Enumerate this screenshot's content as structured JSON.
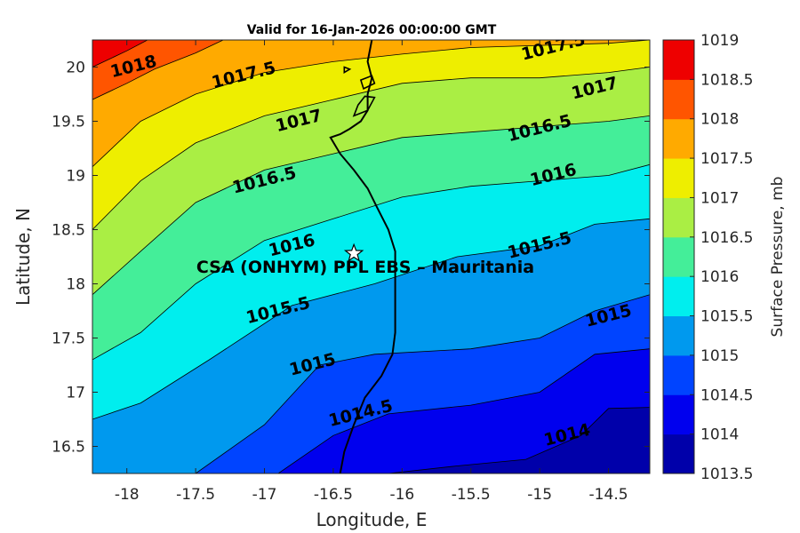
{
  "chart_data": {
    "type": "contour",
    "title": "Valid for 16-Jan-2026 00:00:00 GMT",
    "xlabel": "Longitude, E",
    "ylabel": "Latitude, N",
    "xlim": [
      -18.25,
      -14.2
    ],
    "ylim": [
      16.25,
      20.25
    ],
    "xticks": [
      "-18",
      "-17.5",
      "-17",
      "-16.5",
      "-16",
      "-15.5",
      "-15",
      "-14.5"
    ],
    "yticks": [
      "16.5",
      "17",
      "17.5",
      "18",
      "18.5",
      "19",
      "19.5",
      "20"
    ],
    "colorbar": {
      "label": "Surface Pressure, mb",
      "levels": [
        "1013.5",
        "1014",
        "1014.5",
        "1015",
        "1015.5",
        "1016",
        "1016.5",
        "1017",
        "1017.5",
        "1018",
        "1018.5",
        "1019"
      ],
      "colors": [
        "#0000aa",
        "#0000ee",
        "#0044ff",
        "#0099ee",
        "#00eeee",
        "#44ee99",
        "#aaee44",
        "#eeee00",
        "#ffaa00",
        "#ff5500",
        "#ee0000",
        "#aa0000"
      ]
    },
    "isobars": [
      {
        "level": "1014",
        "points": [
          [
            -16.1,
            16.25
          ],
          [
            -15.6,
            16.32
          ],
          [
            -15.1,
            16.38
          ],
          [
            -14.7,
            16.6
          ],
          [
            -14.5,
            16.85
          ],
          [
            -14.2,
            16.86
          ]
        ]
      },
      {
        "level": "1014.5",
        "points": [
          [
            -16.9,
            16.25
          ],
          [
            -16.5,
            16.6
          ],
          [
            -16.1,
            16.8
          ],
          [
            -15.5,
            16.88
          ],
          [
            -15.0,
            17.0
          ],
          [
            -14.6,
            17.35
          ],
          [
            -14.2,
            17.4
          ]
        ]
      },
      {
        "level": "1015",
        "points": [
          [
            -17.5,
            16.25
          ],
          [
            -17.0,
            16.7
          ],
          [
            -16.6,
            17.25
          ],
          [
            -16.2,
            17.35
          ],
          [
            -15.5,
            17.4
          ],
          [
            -15.0,
            17.5
          ],
          [
            -14.6,
            17.75
          ],
          [
            -14.2,
            17.9
          ]
        ]
      },
      {
        "level": "1015.5",
        "points": [
          [
            -18.25,
            16.75
          ],
          [
            -17.9,
            16.9
          ],
          [
            -17.4,
            17.3
          ],
          [
            -16.8,
            17.8
          ],
          [
            -16.2,
            18.0
          ],
          [
            -15.6,
            18.25
          ],
          [
            -15.0,
            18.35
          ],
          [
            -14.6,
            18.55
          ],
          [
            -14.2,
            18.6
          ]
        ]
      },
      {
        "level": "1016",
        "points": [
          [
            -18.25,
            17.3
          ],
          [
            -17.9,
            17.55
          ],
          [
            -17.5,
            18.0
          ],
          [
            -17.0,
            18.4
          ],
          [
            -16.5,
            18.6
          ],
          [
            -16.0,
            18.8
          ],
          [
            -15.5,
            18.9
          ],
          [
            -15.0,
            18.95
          ],
          [
            -14.5,
            19.0
          ],
          [
            -14.2,
            19.1
          ]
        ]
      },
      {
        "level": "1016.5",
        "points": [
          [
            -18.25,
            17.9
          ],
          [
            -17.9,
            18.3
          ],
          [
            -17.5,
            18.75
          ],
          [
            -17.0,
            19.05
          ],
          [
            -16.5,
            19.2
          ],
          [
            -16.0,
            19.35
          ],
          [
            -15.5,
            19.4
          ],
          [
            -15.0,
            19.45
          ],
          [
            -14.5,
            19.5
          ],
          [
            -14.2,
            19.55
          ]
        ]
      },
      {
        "level": "1017",
        "points": [
          [
            -18.25,
            18.5
          ],
          [
            -17.9,
            18.95
          ],
          [
            -17.5,
            19.3
          ],
          [
            -17.0,
            19.55
          ],
          [
            -16.5,
            19.7
          ],
          [
            -16.0,
            19.85
          ],
          [
            -15.5,
            19.9
          ],
          [
            -15.0,
            19.9
          ],
          [
            -14.5,
            19.95
          ],
          [
            -14.2,
            20.0
          ]
        ]
      },
      {
        "level": "1017.5",
        "points": [
          [
            -18.25,
            19.08
          ],
          [
            -17.9,
            19.5
          ],
          [
            -17.5,
            19.75
          ],
          [
            -17.0,
            19.95
          ],
          [
            -16.5,
            20.05
          ],
          [
            -16.0,
            20.12
          ],
          [
            -15.5,
            20.18
          ],
          [
            -15.0,
            20.2
          ],
          [
            -14.5,
            20.22
          ],
          [
            -14.2,
            20.25
          ]
        ]
      },
      {
        "level": "1018",
        "points": [
          [
            -18.25,
            19.7
          ],
          [
            -18.0,
            19.85
          ],
          [
            -17.8,
            19.98
          ],
          [
            -17.5,
            20.13
          ],
          [
            -17.3,
            20.25
          ]
        ]
      },
      {
        "level": "1018.5",
        "points": [
          [
            -18.25,
            20.0
          ],
          [
            -18.0,
            20.15
          ],
          [
            -17.85,
            20.25
          ]
        ]
      }
    ],
    "isobar_labels": [
      {
        "text": "1018",
        "lon": -17.95,
        "lat": 20.0
      },
      {
        "text": "1017.5",
        "lon": -17.15,
        "lat": 19.92
      },
      {
        "text": "1017.5",
        "lon": -14.9,
        "lat": 20.18
      },
      {
        "text": "1017",
        "lon": -16.75,
        "lat": 19.5
      },
      {
        "text": "1017",
        "lon": -14.6,
        "lat": 19.8
      },
      {
        "text": "1016.5",
        "lon": -17.0,
        "lat": 18.95
      },
      {
        "text": "1016.5",
        "lon": -15.0,
        "lat": 19.43
      },
      {
        "text": "1016",
        "lon": -16.8,
        "lat": 18.35
      },
      {
        "text": "1016",
        "lon": -14.9,
        "lat": 19.0
      },
      {
        "text": "1015.5",
        "lon": -16.9,
        "lat": 17.75
      },
      {
        "text": "1015.5",
        "lon": -15.0,
        "lat": 18.35
      },
      {
        "text": "1015",
        "lon": -16.65,
        "lat": 17.25
      },
      {
        "text": "1015",
        "lon": -14.5,
        "lat": 17.7
      },
      {
        "text": "1014.5",
        "lon": -16.3,
        "lat": 16.8
      },
      {
        "text": "1014",
        "lon": -14.8,
        "lat": 16.6
      }
    ],
    "coastline": [
      [
        -16.45,
        16.25
      ],
      [
        -16.42,
        16.45
      ],
      [
        -16.35,
        16.7
      ],
      [
        -16.27,
        16.95
      ],
      [
        -16.15,
        17.15
      ],
      [
        -16.07,
        17.35
      ],
      [
        -16.05,
        17.55
      ],
      [
        -16.05,
        17.8
      ],
      [
        -16.05,
        18.05
      ],
      [
        -16.05,
        18.3
      ],
      [
        -16.1,
        18.5
      ],
      [
        -16.18,
        18.7
      ],
      [
        -16.25,
        18.88
      ],
      [
        -16.35,
        19.05
      ],
      [
        -16.45,
        19.2
      ],
      [
        -16.52,
        19.35
      ],
      [
        -16.45,
        19.38
      ],
      [
        -16.38,
        19.43
      ],
      [
        -16.3,
        19.5
      ],
      [
        -16.25,
        19.6
      ],
      [
        -16.25,
        19.75
      ],
      [
        -16.22,
        19.9
      ],
      [
        -16.25,
        20.05
      ],
      [
        -16.22,
        20.25
      ]
    ],
    "islands": [
      [
        [
          -16.35,
          19.55
        ],
        [
          -16.25,
          19.6
        ],
        [
          -16.2,
          19.72
        ],
        [
          -16.27,
          19.73
        ],
        [
          -16.32,
          19.65
        ]
      ],
      [
        [
          -16.28,
          19.8
        ],
        [
          -16.2,
          19.85
        ],
        [
          -16.22,
          19.92
        ],
        [
          -16.3,
          19.88
        ]
      ],
      [
        [
          -16.42,
          19.95
        ],
        [
          -16.38,
          19.98
        ],
        [
          -16.42,
          20.0
        ]
      ]
    ],
    "site": {
      "name": "CSA (ONHYM) PPL EBS  – Mauritania",
      "lon": -16.35,
      "lat": 18.28
    }
  }
}
